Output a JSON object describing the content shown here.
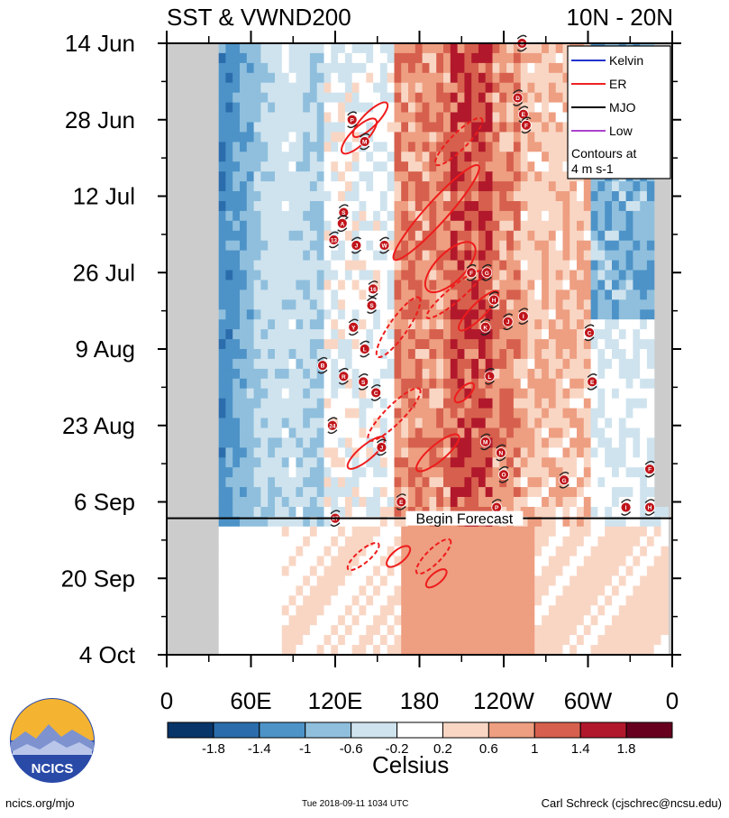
{
  "header": {
    "title_left": "SST & VWND200",
    "title_right": "10N - 20N"
  },
  "footer": {
    "site": "ncics.org/mjo",
    "timestamp": "Tue 2018-09-11 1034 UTC",
    "author": "Carl Schreck (cjschrec@ncsu.edu)"
  },
  "logo": {
    "text": "NCICS",
    "icon": "ncics-mountain-logo"
  },
  "chart_data": {
    "type": "heatmap",
    "title": "SST & VWND200",
    "subtitle": "10N - 20N",
    "x_ticks": [
      "0",
      "60E",
      "120E",
      "180",
      "120W",
      "60W",
      "0"
    ],
    "x_range_deg_east": [
      0,
      360
    ],
    "y_ticks": [
      "14 Jun",
      "28 Jun",
      "12 Jul",
      "26 Jul",
      "9 Aug",
      "23 Aug",
      "6 Sep",
      "20 Sep",
      "4 Oct"
    ],
    "y_range": [
      "2018-06-14",
      "2018-10-04"
    ],
    "forecast_start_date": "2018-09-09",
    "forecast_label": "Begin Forecast",
    "grid": false,
    "legend": {
      "placement": "top-right",
      "entries": [
        {
          "name": "Kelvin",
          "color": "#2233cc"
        },
        {
          "name": "ER",
          "color": "#ee2222"
        },
        {
          "name": "MJO",
          "color": "#000000"
        },
        {
          "name": "Low",
          "color": "#aa44cc"
        }
      ],
      "note_lines": [
        "Contours at",
        "4 m s-1"
      ]
    },
    "colorbar": {
      "label": "Celsius",
      "tick_labels": [
        "-1.8",
        "-1.4",
        "-1",
        "-0.6",
        "-0.2",
        "0.2",
        "0.6",
        "1",
        "1.4",
        "1.8"
      ],
      "colors": [
        "#083569",
        "#2b6dac",
        "#4d93c8",
        "#8fbfdd",
        "#cfe3ee",
        "#ffffff",
        "#f9d6c4",
        "#ee9e81",
        "#d6604d",
        "#b2182b",
        "#67001f"
      ]
    },
    "storm_markers": [
      {
        "label": "C",
        "lon": 253,
        "date": "2018-06-14"
      },
      {
        "label": "D",
        "lon": 250,
        "date": "2018-06-24"
      },
      {
        "label": "E",
        "lon": 254,
        "date": "2018-06-27"
      },
      {
        "label": "F",
        "lon": 256,
        "date": "2018-06-29"
      },
      {
        "label": "P",
        "lon": 132,
        "date": "2018-06-28"
      },
      {
        "label": "M",
        "lon": 141,
        "date": "2018-07-02"
      },
      {
        "label": "S",
        "lon": 126,
        "date": "2018-07-15"
      },
      {
        "label": "A",
        "lon": 125,
        "date": "2018-07-17"
      },
      {
        "label": "13",
        "lon": 119,
        "date": "2018-07-20"
      },
      {
        "label": "J",
        "lon": 135,
        "date": "2018-07-21"
      },
      {
        "label": "W",
        "lon": 155,
        "date": "2018-07-21"
      },
      {
        "label": "F",
        "lon": 217,
        "date": "2018-07-26"
      },
      {
        "label": "G",
        "lon": 228,
        "date": "2018-07-26"
      },
      {
        "label": "16",
        "lon": 147,
        "date": "2018-07-29"
      },
      {
        "label": "S",
        "lon": 146,
        "date": "2018-08-01"
      },
      {
        "label": "H",
        "lon": 233,
        "date": "2018-07-31"
      },
      {
        "label": "Y",
        "lon": 133,
        "date": "2018-08-05"
      },
      {
        "label": "K",
        "lon": 227,
        "date": "2018-08-05"
      },
      {
        "label": "J",
        "lon": 243,
        "date": "2018-08-04"
      },
      {
        "label": "I",
        "lon": 254,
        "date": "2018-08-03"
      },
      {
        "label": "L",
        "lon": 141,
        "date": "2018-08-09"
      },
      {
        "label": "C",
        "lon": 301,
        "date": "2018-08-06"
      },
      {
        "label": "B",
        "lon": 111,
        "date": "2018-08-12"
      },
      {
        "label": "R",
        "lon": 126,
        "date": "2018-08-14"
      },
      {
        "label": "S",
        "lon": 140,
        "date": "2018-08-15"
      },
      {
        "label": "L",
        "lon": 230,
        "date": "2018-08-14"
      },
      {
        "label": "E",
        "lon": 303,
        "date": "2018-08-15"
      },
      {
        "label": "C",
        "lon": 149,
        "date": "2018-08-17"
      },
      {
        "label": "24",
        "lon": 118,
        "date": "2018-08-23"
      },
      {
        "label": "J",
        "lon": 153,
        "date": "2018-08-27"
      },
      {
        "label": "M",
        "lon": 227,
        "date": "2018-08-26"
      },
      {
        "label": "N",
        "lon": 238,
        "date": "2018-08-28"
      },
      {
        "label": "O",
        "lon": 240,
        "date": "2018-09-01"
      },
      {
        "label": "G",
        "lon": 283,
        "date": "2018-09-02"
      },
      {
        "label": "F",
        "lon": 344,
        "date": "2018-08-31"
      },
      {
        "label": "E",
        "lon": 167,
        "date": "2018-09-06"
      },
      {
        "label": "P",
        "lon": 235,
        "date": "2018-09-07"
      },
      {
        "label": "I",
        "lon": 327,
        "date": "2018-09-07"
      },
      {
        "label": "H",
        "lon": 344,
        "date": "2018-09-07"
      },
      {
        "label": "27",
        "lon": 120,
        "date": "2018-09-09"
      }
    ]
  }
}
